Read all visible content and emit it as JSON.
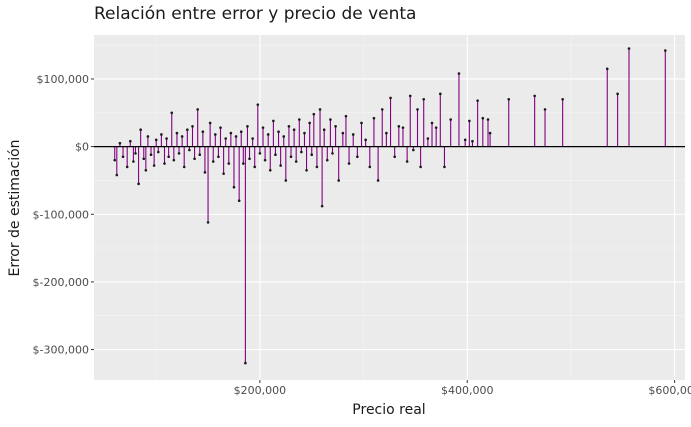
{
  "chart_data": {
    "type": "scatter",
    "style": "vertical error segments from zero line to point",
    "title": "Relación entre error y precio de venta",
    "xlabel": "Precio real",
    "ylabel": "Error de estimación",
    "xlim": [
      40000,
      610000
    ],
    "ylim": [
      -345000,
      165000
    ],
    "x_ticks": [
      200000,
      400000,
      600000
    ],
    "x_tick_labels": [
      "$200,000",
      "$400,000",
      "$600,000"
    ],
    "y_ticks": [
      100000,
      0,
      -100000,
      -200000,
      -300000
    ],
    "y_tick_labels": [
      "$100,000",
      "$0",
      "$-100,000",
      "$-200,000",
      "$-300,000"
    ],
    "grid": true,
    "reference_line_y": 0,
    "colors": {
      "panel": "#ebebeb",
      "grid": "#ffffff",
      "segment": "#800080",
      "point": "#1a1a1a",
      "zero_line": "#000000"
    },
    "points": [
      {
        "x": 60000,
        "y": -20000
      },
      {
        "x": 62000,
        "y": -42000
      },
      {
        "x": 65000,
        "y": 5000
      },
      {
        "x": 68000,
        "y": -15000
      },
      {
        "x": 72000,
        "y": -30000
      },
      {
        "x": 75000,
        "y": 8000
      },
      {
        "x": 78000,
        "y": -22000
      },
      {
        "x": 80000,
        "y": -10000
      },
      {
        "x": 83000,
        "y": -55000
      },
      {
        "x": 85000,
        "y": 25000
      },
      {
        "x": 88000,
        "y": -18000
      },
      {
        "x": 90000,
        "y": -35000
      },
      {
        "x": 92000,
        "y": 15000
      },
      {
        "x": 95000,
        "y": -12000
      },
      {
        "x": 98000,
        "y": -28000
      },
      {
        "x": 100000,
        "y": 10000
      },
      {
        "x": 102000,
        "y": -8000
      },
      {
        "x": 105000,
        "y": 18000
      },
      {
        "x": 108000,
        "y": -25000
      },
      {
        "x": 110000,
        "y": 12000
      },
      {
        "x": 112000,
        "y": -15000
      },
      {
        "x": 115000,
        "y": 50000
      },
      {
        "x": 117000,
        "y": -20000
      },
      {
        "x": 120000,
        "y": 20000
      },
      {
        "x": 122000,
        "y": -10000
      },
      {
        "x": 125000,
        "y": 15000
      },
      {
        "x": 127000,
        "y": -30000
      },
      {
        "x": 130000,
        "y": 25000
      },
      {
        "x": 132000,
        "y": -5000
      },
      {
        "x": 135000,
        "y": 30000
      },
      {
        "x": 137000,
        "y": -18000
      },
      {
        "x": 140000,
        "y": 55000
      },
      {
        "x": 142000,
        "y": -12000
      },
      {
        "x": 145000,
        "y": 22000
      },
      {
        "x": 147000,
        "y": -38000
      },
      {
        "x": 150000,
        "y": -112000
      },
      {
        "x": 152000,
        "y": 35000
      },
      {
        "x": 155000,
        "y": -22000
      },
      {
        "x": 157000,
        "y": 18000
      },
      {
        "x": 160000,
        "y": -15000
      },
      {
        "x": 162000,
        "y": 28000
      },
      {
        "x": 165000,
        "y": -40000
      },
      {
        "x": 167000,
        "y": 12000
      },
      {
        "x": 170000,
        "y": -25000
      },
      {
        "x": 172000,
        "y": 20000
      },
      {
        "x": 175000,
        "y": -60000
      },
      {
        "x": 177000,
        "y": 15000
      },
      {
        "x": 180000,
        "y": -80000
      },
      {
        "x": 182000,
        "y": 22000
      },
      {
        "x": 184000,
        "y": -25000
      },
      {
        "x": 186000,
        "y": -320000
      },
      {
        "x": 188000,
        "y": 30000
      },
      {
        "x": 190000,
        "y": -18000
      },
      {
        "x": 193000,
        "y": 12000
      },
      {
        "x": 195000,
        "y": -30000
      },
      {
        "x": 198000,
        "y": 62000
      },
      {
        "x": 200000,
        "y": -10000
      },
      {
        "x": 203000,
        "y": 28000
      },
      {
        "x": 205000,
        "y": -20000
      },
      {
        "x": 208000,
        "y": 18000
      },
      {
        "x": 210000,
        "y": -35000
      },
      {
        "x": 213000,
        "y": 38000
      },
      {
        "x": 215000,
        "y": -12000
      },
      {
        "x": 218000,
        "y": 22000
      },
      {
        "x": 220000,
        "y": -28000
      },
      {
        "x": 223000,
        "y": 15000
      },
      {
        "x": 225000,
        "y": -50000
      },
      {
        "x": 228000,
        "y": 30000
      },
      {
        "x": 230000,
        "y": -15000
      },
      {
        "x": 233000,
        "y": 25000
      },
      {
        "x": 235000,
        "y": -22000
      },
      {
        "x": 238000,
        "y": 40000
      },
      {
        "x": 240000,
        "y": -8000
      },
      {
        "x": 243000,
        "y": 20000
      },
      {
        "x": 245000,
        "y": -35000
      },
      {
        "x": 248000,
        "y": 35000
      },
      {
        "x": 250000,
        "y": -12000
      },
      {
        "x": 252000,
        "y": 48000
      },
      {
        "x": 255000,
        "y": -30000
      },
      {
        "x": 258000,
        "y": 55000
      },
      {
        "x": 260000,
        "y": -88000
      },
      {
        "x": 262000,
        "y": 25000
      },
      {
        "x": 265000,
        "y": -20000
      },
      {
        "x": 268000,
        "y": 40000
      },
      {
        "x": 270000,
        "y": -10000
      },
      {
        "x": 273000,
        "y": 30000
      },
      {
        "x": 276000,
        "y": -50000
      },
      {
        "x": 280000,
        "y": 20000
      },
      {
        "x": 283000,
        "y": 45000
      },
      {
        "x": 286000,
        "y": -25000
      },
      {
        "x": 290000,
        "y": 18000
      },
      {
        "x": 294000,
        "y": -15000
      },
      {
        "x": 298000,
        "y": 35000
      },
      {
        "x": 302000,
        "y": 10000
      },
      {
        "x": 306000,
        "y": -30000
      },
      {
        "x": 310000,
        "y": 42000
      },
      {
        "x": 314000,
        "y": -50000
      },
      {
        "x": 318000,
        "y": 55000
      },
      {
        "x": 322000,
        "y": 20000
      },
      {
        "x": 326000,
        "y": 72000
      },
      {
        "x": 330000,
        "y": -15000
      },
      {
        "x": 334000,
        "y": 30000
      },
      {
        "x": 338000,
        "y": 28000
      },
      {
        "x": 342000,
        "y": -22000
      },
      {
        "x": 345000,
        "y": 75000
      },
      {
        "x": 348000,
        "y": -5000
      },
      {
        "x": 352000,
        "y": 55000
      },
      {
        "x": 355000,
        "y": -30000
      },
      {
        "x": 358000,
        "y": 70000
      },
      {
        "x": 362000,
        "y": 12000
      },
      {
        "x": 366000,
        "y": 35000
      },
      {
        "x": 370000,
        "y": 28000
      },
      {
        "x": 374000,
        "y": 78000
      },
      {
        "x": 378000,
        "y": -30000
      },
      {
        "x": 384000,
        "y": 40000
      },
      {
        "x": 392000,
        "y": 108000
      },
      {
        "x": 398000,
        "y": 10000
      },
      {
        "x": 402000,
        "y": 38000
      },
      {
        "x": 405000,
        "y": 8000
      },
      {
        "x": 410000,
        "y": 68000
      },
      {
        "x": 415000,
        "y": 42000
      },
      {
        "x": 420000,
        "y": 40000
      },
      {
        "x": 422000,
        "y": 20000
      },
      {
        "x": 440000,
        "y": 70000
      },
      {
        "x": 465000,
        "y": 75000
      },
      {
        "x": 475000,
        "y": 55000
      },
      {
        "x": 492000,
        "y": 70000
      },
      {
        "x": 535000,
        "y": 115000
      },
      {
        "x": 545000,
        "y": 78000
      },
      {
        "x": 556000,
        "y": 145000
      },
      {
        "x": 591000,
        "y": 142000
      }
    ]
  }
}
